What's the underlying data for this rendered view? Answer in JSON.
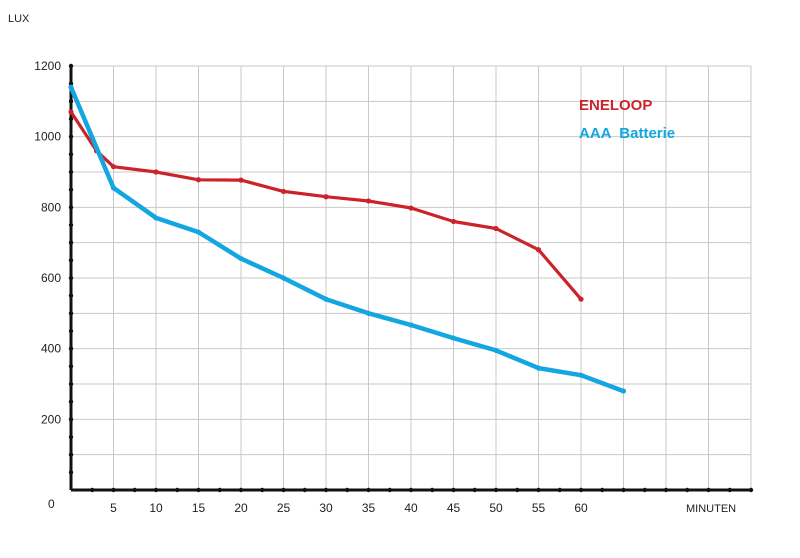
{
  "chart_data": {
    "type": "line",
    "ylabel": "LUX",
    "xlabel": "MINUTEN",
    "ylim": [
      0,
      1200
    ],
    "xlim": [
      0,
      80
    ],
    "yticks": [
      0,
      200,
      400,
      600,
      800,
      1000,
      1200
    ],
    "xtick_labels": [
      {
        "x": 5,
        "label": "5"
      },
      {
        "x": 10,
        "label": "10"
      },
      {
        "x": 15,
        "label": "15"
      },
      {
        "x": 20,
        "label": "20"
      },
      {
        "x": 25,
        "label": "25"
      },
      {
        "x": 30,
        "label": "30"
      },
      {
        "x": 35,
        "label": "35"
      },
      {
        "x": 40,
        "label": "40"
      },
      {
        "x": 45,
        "label": "45"
      },
      {
        "x": 50,
        "label": "50"
      },
      {
        "x": 55,
        "label": "55"
      },
      {
        "x": 60,
        "label": "60"
      }
    ],
    "origin_label": "0",
    "grid": true,
    "legend_position": "top-right",
    "series": [
      {
        "name": "ENELOOP",
        "color": "#cc2229",
        "points": [
          [
            0,
            1070
          ],
          [
            3,
            960
          ],
          [
            5,
            915
          ],
          [
            10,
            900
          ],
          [
            15,
            878
          ],
          [
            20,
            877
          ],
          [
            25,
            845
          ],
          [
            30,
            830
          ],
          [
            35,
            818
          ],
          [
            40,
            798
          ],
          [
            45,
            760
          ],
          [
            50,
            740
          ],
          [
            55,
            680
          ],
          [
            60,
            540
          ]
        ]
      },
      {
        "name": "AAA  Batterie",
        "color": "#13a6e0",
        "points": [
          [
            0,
            1140
          ],
          [
            5,
            855
          ],
          [
            10,
            770
          ],
          [
            15,
            730
          ],
          [
            20,
            655
          ],
          [
            25,
            600
          ],
          [
            30,
            540
          ],
          [
            35,
            500
          ],
          [
            40,
            467
          ],
          [
            45,
            430
          ],
          [
            50,
            395
          ],
          [
            55,
            345
          ],
          [
            60,
            325
          ],
          [
            65,
            280
          ]
        ]
      }
    ]
  }
}
